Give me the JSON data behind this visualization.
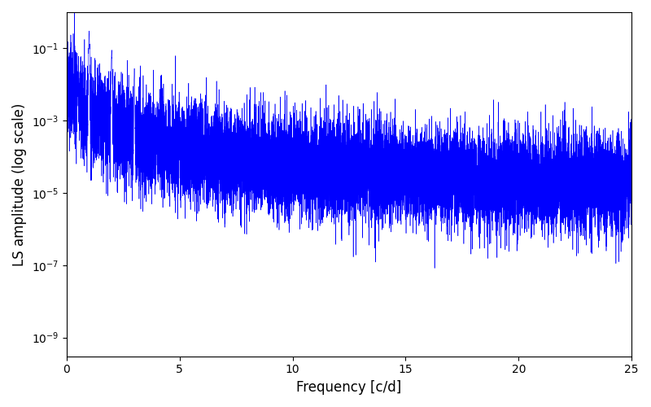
{
  "title": "",
  "xlabel": "Frequency [c/d]",
  "ylabel": "LS amplitude (log scale)",
  "xlim": [
    0,
    25
  ],
  "ylim_log": [
    3e-10,
    1.0
  ],
  "yticks": [
    1e-09,
    1e-07,
    1e-05,
    0.001,
    0.1
  ],
  "line_color": "#0000ff",
  "line_width": 0.4,
  "background_color": "#ffffff",
  "fig_width": 8.0,
  "fig_height": 5.0,
  "dpi": 100,
  "seed": 42,
  "n_points": 15000,
  "freq_max": 25.0,
  "xlabel_fontsize": 12,
  "ylabel_fontsize": 12
}
